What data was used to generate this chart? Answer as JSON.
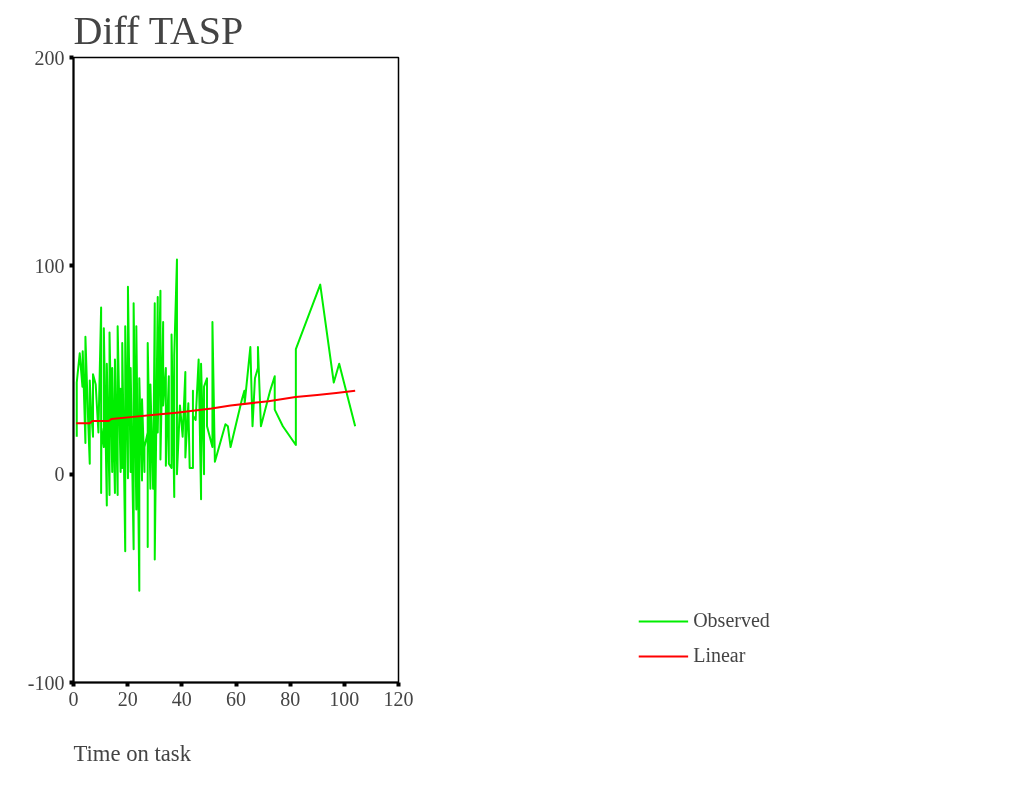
{
  "chart_data": {
    "type": "line",
    "title": "Diff TASP",
    "xlabel": "Time on task",
    "xlim": [
      0,
      120
    ],
    "xticks": [
      0,
      20,
      40,
      60,
      80,
      100,
      120
    ],
    "ylim": [
      -100,
      200
    ],
    "yticks": [
      -100,
      0,
      100,
      200
    ],
    "grid": false,
    "legend": "bottom right",
    "series": [
      {
        "name": "Observed",
        "color": "#00ee00",
        "x": [
          1.2,
          1.2,
          2.3,
          3.3,
          3.4,
          4.4,
          4.4,
          5.4,
          6.0,
          6.0,
          6.5,
          7.2,
          7.2,
          8.2,
          9.2,
          10.2,
          10.2,
          10.3,
          11.2,
          11.2,
          12.3,
          12.3,
          13.3,
          13.3,
          14.3,
          14.3,
          15.3,
          15.3,
          16.3,
          16.3,
          17.4,
          17.4,
          18.0,
          18.0,
          19.1,
          19.1,
          20.1,
          20.1,
          21.1,
          21.1,
          22.2,
          22.2,
          23.2,
          23.2,
          24.3,
          24.3,
          25.3,
          25.3,
          26.2,
          26.2,
          27.4,
          27.4,
          27.4,
          28.4,
          28.4,
          29.4,
          30.0,
          30.0,
          31.1,
          31.1,
          32.1,
          32.1,
          33.1,
          33.1,
          34.1,
          34.1,
          35.2,
          35.2,
          36.2,
          36.2,
          37.2,
          37.2,
          38.2,
          38.2,
          39.3,
          40.3,
          41.3,
          41.3,
          42.4,
          42.9,
          44.1,
          44.1,
          44.1,
          45.1,
          46.2,
          47.1,
          47.1,
          48.2,
          48.2,
          49.3,
          49.3,
          51.3,
          51.3,
          52.2,
          56.1,
          57.0,
          58.0,
          62.2,
          63.1,
          63.2,
          65.3,
          66.1,
          67.0,
          68.1,
          68.1,
          69.2,
          72.6,
          74.3,
          74.3,
          77.3,
          82.1,
          82.1,
          91.1,
          96.1,
          98.1,
          104.0
        ],
        "values": [
          18,
          44,
          58,
          42,
          59,
          15,
          66,
          26,
          5,
          45,
          31,
          18,
          48,
          43,
          20,
          80,
          -9,
          22,
          13,
          70,
          -15,
          53,
          -10,
          68,
          1,
          51,
          -9,
          55,
          -10,
          71,
          1,
          41,
          3,
          63,
          -37,
          71,
          -2,
          90,
          1,
          51,
          -36,
          82,
          -17,
          71,
          -56,
          46,
          -3,
          36,
          1,
          13,
          20,
          -35,
          63,
          -7,
          43,
          -7,
          82,
          -41,
          85,
          20,
          88,
          7,
          73,
          33,
          51,
          4,
          47,
          5,
          3,
          67,
          -11,
          57,
          103,
          0,
          33,
          18,
          49,
          8,
          34,
          3,
          3,
          40,
          28,
          26,
          55,
          -12,
          53,
          0,
          42,
          46,
          23,
          13,
          73,
          6,
          24,
          23,
          13,
          36,
          40,
          34,
          61,
          23,
          46,
          51,
          61,
          23,
          40,
          47,
          31,
          23,
          14,
          60,
          91,
          44,
          53,
          23
        ]
      },
      {
        "name": "Linear",
        "color": "#ff0000",
        "x": [
          1,
          6,
          7,
          13,
          14,
          22,
          30,
          38,
          51,
          58,
          72,
          82,
          90,
          97,
          104
        ],
        "values": [
          24.5,
          24.5,
          25.5,
          25.5,
          26.5,
          27.5,
          28.5,
          29.5,
          31.5,
          33,
          35,
          37,
          38,
          39,
          40
        ]
      }
    ]
  }
}
